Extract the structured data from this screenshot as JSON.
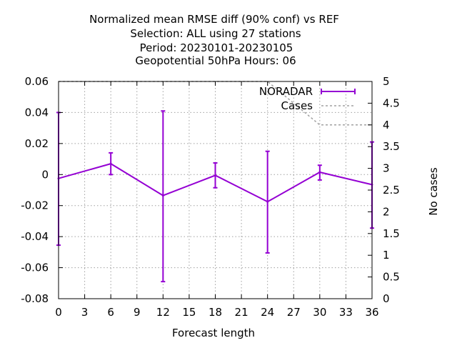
{
  "chart_data": {
    "type": "line",
    "title_lines": [
      "Normalized mean RMSE diff (90% conf) vs REF",
      "Selection: ALL using    27 stations",
      "Period: 20230101-20230105",
      "Geopotential 50hPa   Hours:  06"
    ],
    "xlabel": "Forecast length",
    "ylabel": "",
    "y2label": "No cases",
    "xlim": [
      0,
      36
    ],
    "ylim": [
      -0.08,
      0.06
    ],
    "y2lim": [
      0,
      5
    ],
    "x_ticks": [
      "0",
      "3",
      "6",
      "9",
      "12",
      "15",
      "18",
      "21",
      "24",
      "27",
      "30",
      "33",
      "36"
    ],
    "y_ticks": [
      "0.06",
      "0.04",
      "0.02",
      "0",
      "-0.02",
      "-0.04",
      "-0.06",
      "-0.08"
    ],
    "y2_ticks": [
      "5",
      "4.5",
      "4",
      "3.5",
      "3",
      "2.5",
      "2",
      "1.5",
      "1",
      "0.5",
      "0"
    ],
    "grid": true,
    "legend_position": "top-right",
    "series": [
      {
        "name": "NORADAR",
        "color": "#9400d3",
        "style": "line-errorbars",
        "x": [
          0,
          6,
          12,
          18,
          24,
          30,
          36
        ],
        "y": [
          -0.0025,
          0.007,
          -0.0135,
          -0.0005,
          -0.0175,
          0.0015,
          -0.0065
        ],
        "err_low": [
          -0.0455,
          0.0,
          -0.069,
          -0.0085,
          -0.0505,
          -0.0035,
          -0.0345
        ],
        "err_high": [
          0.04,
          0.014,
          0.041,
          0.0075,
          0.015,
          0.006,
          0.021
        ]
      },
      {
        "name": "Cases",
        "color": "#a0a0a0",
        "style": "dashed",
        "axis": "y2",
        "x": [
          0,
          6,
          12,
          18,
          24,
          30,
          36
        ],
        "y": [
          5,
          5,
          5,
          5,
          5,
          4,
          4
        ]
      }
    ]
  }
}
